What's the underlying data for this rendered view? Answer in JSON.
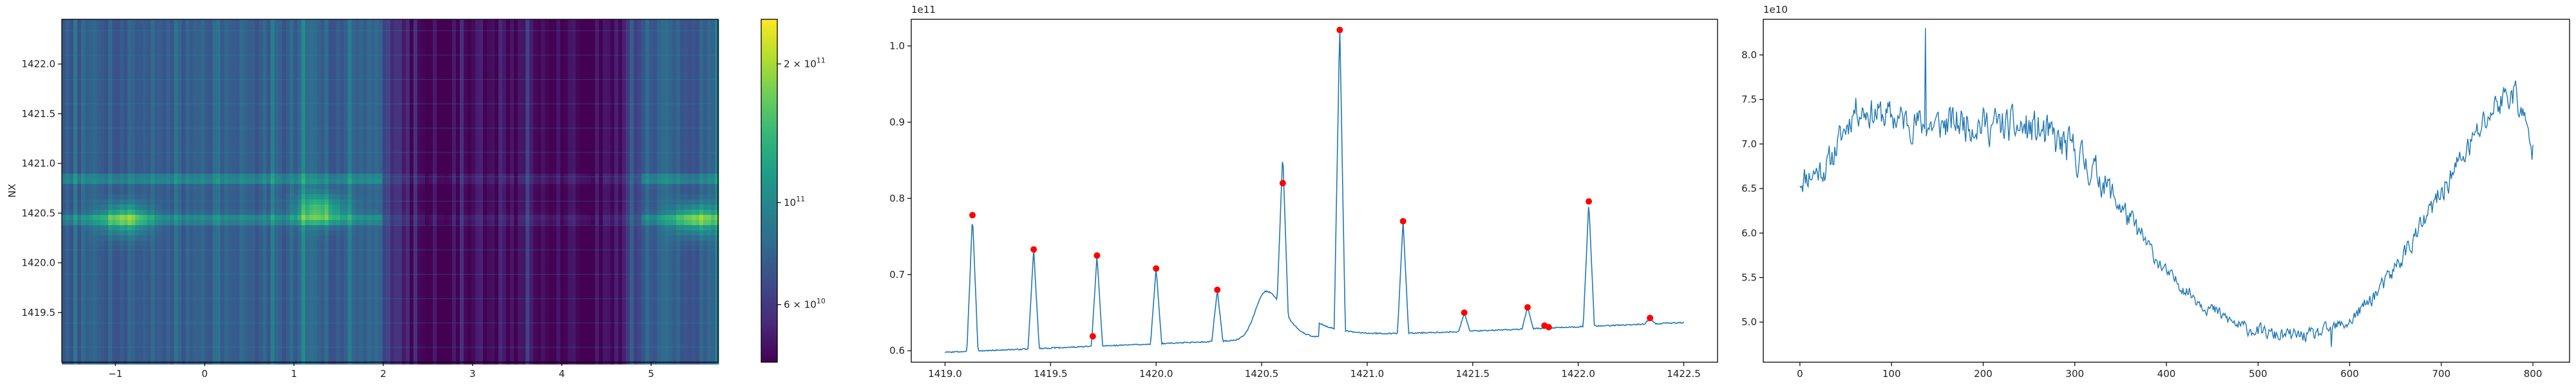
{
  "chart_data": [
    {
      "type": "heatmap",
      "ylabel": "NX",
      "xlim": [
        -1.6,
        5.75
      ],
      "ylim": [
        1419.0,
        1422.45
      ],
      "xticks": [
        -1,
        0,
        1,
        2,
        3,
        4,
        5
      ],
      "yticks": [
        1419.5,
        1420.0,
        1420.5,
        1421.0,
        1421.5,
        1422.0
      ],
      "xtick_labels": [
        "−1",
        "0",
        "1",
        "2",
        "3",
        "4",
        "5"
      ],
      "ytick_labels": [
        "1419.5",
        "1420.0",
        "1420.5",
        "1421.0",
        "1421.5",
        "1422.0"
      ],
      "colormap": "viridis",
      "colorscale": "log",
      "colorbar": {
        "range": [
          45000000000,
          250000000000
        ],
        "ticks": [
          {
            "value": 200000000000,
            "label_base": "2 × 10",
            "label_exp": "11"
          },
          {
            "value": 100000000000,
            "label_base": "10",
            "label_exp": "11"
          },
          {
            "value": 60000000000,
            "label_base": "6 × 10",
            "label_exp": "10"
          }
        ]
      },
      "features": {
        "dark_band_x": [
          2.0,
          4.9
        ],
        "bright_rows_nx": [
          1420.45,
          1420.85
        ],
        "hot_spots": [
          {
            "x": -0.9,
            "nx": 1420.45
          },
          {
            "x": 1.3,
            "nx": 1420.55
          },
          {
            "x": 5.5,
            "nx": 1420.45
          }
        ]
      }
    },
    {
      "type": "line",
      "xlim": [
        1418.84,
        1422.66
      ],
      "ylim": [
        58500000000.0,
        103500000000.0
      ],
      "xticks": [
        1419.0,
        1419.5,
        1420.0,
        1420.5,
        1421.0,
        1421.5,
        1422.0,
        1422.5
      ],
      "xtick_labels": [
        "1419.0",
        "1419.5",
        "1420.0",
        "1420.5",
        "1421.0",
        "1421.5",
        "1422.0",
        "1422.5"
      ],
      "yticks": [
        60000000000.0,
        70000000000.0,
        80000000000.0,
        90000000000.0,
        100000000000.0
      ],
      "ytick_labels": [
        "0.6",
        "0.7",
        "0.8",
        "0.9",
        "1.0"
      ],
      "y_offset_label": "1e11",
      "line_color": "#1f77b4",
      "marker_color": "#ff0000",
      "baseline": {
        "x": [
          1419.0,
          1422.5
        ],
        "y": [
          59800000000.0,
          63700000000.0
        ]
      },
      "spikes": [
        {
          "x": 1419.13,
          "y": 77800000000.0
        },
        {
          "x": 1419.42,
          "y": 73300000000.0
        },
        {
          "x": 1419.72,
          "y": 72500000000.0
        },
        {
          "x": 1420.0,
          "y": 70800000000.0
        },
        {
          "x": 1420.29,
          "y": 68000000000.0
        },
        {
          "x": 1420.6,
          "y": 82000000000.0
        },
        {
          "x": 1420.87,
          "y": 102100000000.0
        },
        {
          "x": 1421.17,
          "y": 77000000000.0
        },
        {
          "x": 1421.46,
          "y": 65000000000.0
        },
        {
          "x": 1421.76,
          "y": 65700000000.0
        },
        {
          "x": 1422.05,
          "y": 79600000000.0
        },
        {
          "x": 1422.34,
          "y": 64300000000.0
        }
      ],
      "bump": {
        "center": 1420.52,
        "height": 6300000000.0,
        "width": 0.07
      },
      "peaks": [
        {
          "x": 1419.13,
          "y": 77800000000.0
        },
        {
          "x": 1419.42,
          "y": 73300000000.0
        },
        {
          "x": 1419.7,
          "y": 61900000000.0
        },
        {
          "x": 1419.72,
          "y": 72500000000.0
        },
        {
          "x": 1420.0,
          "y": 70800000000.0
        },
        {
          "x": 1420.29,
          "y": 68000000000.0
        },
        {
          "x": 1420.6,
          "y": 82000000000.0
        },
        {
          "x": 1420.87,
          "y": 102100000000.0
        },
        {
          "x": 1421.17,
          "y": 77000000000.0
        },
        {
          "x": 1421.46,
          "y": 65000000000.0
        },
        {
          "x": 1421.76,
          "y": 65700000000.0
        },
        {
          "x": 1421.84,
          "y": 63300000000.0
        },
        {
          "x": 1421.86,
          "y": 63100000000.0
        },
        {
          "x": 1422.05,
          "y": 79600000000.0
        },
        {
          "x": 1422.34,
          "y": 64300000000.0
        }
      ]
    },
    {
      "type": "line",
      "xlim": [
        -40,
        840
      ],
      "ylim": [
        45500000000.0,
        84000000000.0
      ],
      "xticks": [
        0,
        100,
        200,
        300,
        400,
        500,
        600,
        700,
        800
      ],
      "xtick_labels": [
        "0",
        "100",
        "200",
        "300",
        "400",
        "500",
        "600",
        "700",
        "800"
      ],
      "yticks": [
        50000000000.0,
        55000000000.0,
        60000000000.0,
        65000000000.0,
        70000000000.0,
        75000000000.0,
        80000000000.0
      ],
      "ytick_labels": [
        "5.0",
        "5.5",
        "6.0",
        "6.5",
        "7.0",
        "7.5",
        "8.0"
      ],
      "y_offset_label": "1e10",
      "line_color": "#1f77b4",
      "n_points": 801,
      "trend": [
        {
          "x": 0,
          "y": 66000000000.0
        },
        {
          "x": 30,
          "y": 67500000000.0
        },
        {
          "x": 60,
          "y": 74000000000.0
        },
        {
          "x": 100,
          "y": 73000000000.0
        },
        {
          "x": 140,
          "y": 72000000000.0
        },
        {
          "x": 180,
          "y": 72500000000.0
        },
        {
          "x": 220,
          "y": 72000000000.0
        },
        {
          "x": 260,
          "y": 71500000000.0
        },
        {
          "x": 300,
          "y": 69000000000.0
        },
        {
          "x": 330,
          "y": 66000000000.0
        },
        {
          "x": 360,
          "y": 61500000000.0
        },
        {
          "x": 400,
          "y": 55500000000.0
        },
        {
          "x": 440,
          "y": 52000000000.0
        },
        {
          "x": 480,
          "y": 49500000000.0
        },
        {
          "x": 520,
          "y": 48500000000.0
        },
        {
          "x": 560,
          "y": 48500000000.0
        },
        {
          "x": 600,
          "y": 50000000000.0
        },
        {
          "x": 640,
          "y": 54500000000.0
        },
        {
          "x": 680,
          "y": 61000000000.0
        },
        {
          "x": 720,
          "y": 68000000000.0
        },
        {
          "x": 760,
          "y": 74500000000.0
        },
        {
          "x": 780,
          "y": 76000000000.0
        },
        {
          "x": 800,
          "y": 69000000000.0
        }
      ],
      "noise_amplitude": [
        {
          "x": 0,
          "y": 2500000000.0
        },
        {
          "x": 300,
          "y": 3500000000.0
        },
        {
          "x": 400,
          "y": 1200000000.0
        },
        {
          "x": 600,
          "y": 1200000000.0
        },
        {
          "x": 800,
          "y": 3000000000.0
        }
      ],
      "features": {
        "max": {
          "x": 137,
          "y": 83000000000.0
        },
        "min": {
          "x": 580,
          "y": 47200000000.0
        }
      }
    }
  ]
}
